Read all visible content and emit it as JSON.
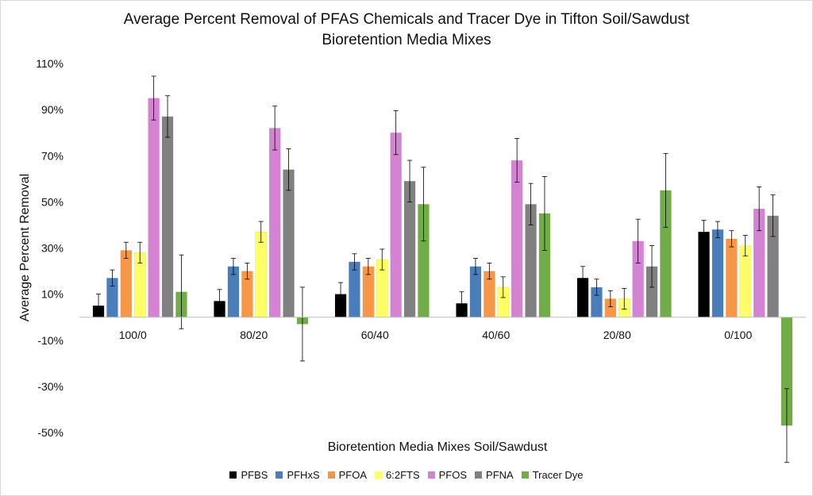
{
  "chart_data": {
    "type": "bar",
    "title": [
      "Average Percent Removal of PFAS Chemicals and Tracer Dye in Tifton Soil/Sawdust",
      "Bioretention Media Mixes"
    ],
    "xlabel": "Bioretention Media Mixes Soil/Sawdust",
    "ylabel": "Average Percent Removal",
    "ylim": [
      -50,
      110
    ],
    "yticks": [
      110,
      90,
      70,
      50,
      30,
      10,
      -10,
      -30,
      -50
    ],
    "ytick_labels": [
      "110%",
      "90%",
      "70%",
      "50%",
      "30%",
      "10%",
      "-10%",
      "-30%",
      "-50%"
    ],
    "categories": [
      "100/0",
      "80/20",
      "60/40",
      "40/60",
      "20/80",
      "0/100"
    ],
    "legend_position": "bottom",
    "grid": false,
    "series": [
      {
        "name": "PFBS",
        "color": "#000000",
        "values": [
          5,
          7,
          10,
          6,
          17,
          37
        ],
        "errors": [
          5,
          5,
          5,
          5,
          5,
          5
        ]
      },
      {
        "name": "PFHxS",
        "color": "#4a7ebb",
        "values": [
          17,
          22,
          24,
          22,
          13,
          38
        ],
        "errors": [
          3.5,
          3.5,
          3.5,
          3.5,
          3.5,
          3.5
        ]
      },
      {
        "name": "PFOA",
        "color": "#f79646",
        "values": [
          29,
          20,
          22,
          20,
          8,
          34
        ],
        "errors": [
          3.5,
          3.5,
          3.5,
          3.5,
          3.5,
          3.5
        ]
      },
      {
        "name": "6:2FTS",
        "color": "#ffff66",
        "values": [
          28,
          37,
          25,
          13,
          8,
          31
        ],
        "errors": [
          4.5,
          4.5,
          4.5,
          4.5,
          4.5,
          4.5
        ]
      },
      {
        "name": "PFOS",
        "color": "#d483d3",
        "values": [
          95,
          82,
          80,
          68,
          33,
          47
        ],
        "errors": [
          9.5,
          9.5,
          9.5,
          9.5,
          9.5,
          9.5
        ]
      },
      {
        "name": "PFNA",
        "color": "#808080",
        "values": [
          87,
          64,
          59,
          49,
          22,
          44
        ],
        "errors": [
          9,
          9,
          9,
          9,
          9,
          9
        ]
      },
      {
        "name": "Tracer Dye",
        "color": "#70ad47",
        "values": [
          11,
          -3,
          49,
          45,
          55,
          -47
        ],
        "errors": [
          16,
          16,
          16,
          16,
          16,
          16
        ]
      }
    ]
  }
}
